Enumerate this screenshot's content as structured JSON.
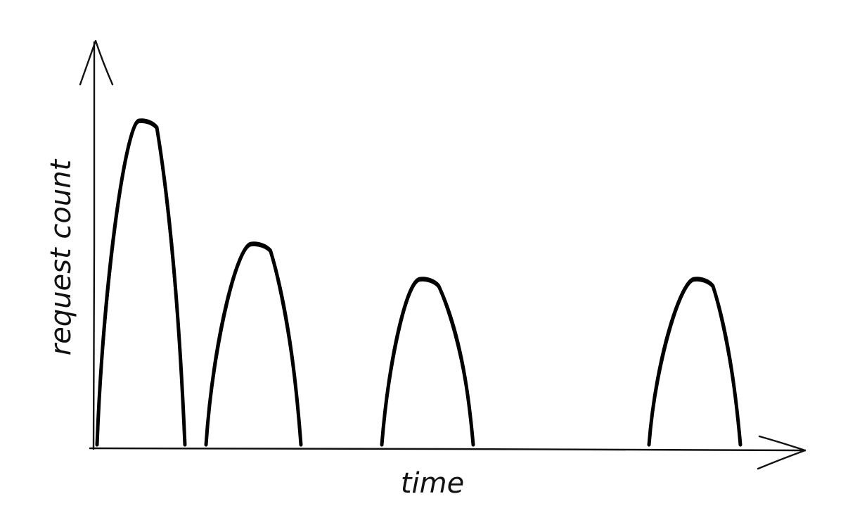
{
  "chart_data": {
    "type": "area",
    "xlabel": "time",
    "ylabel": "request count",
    "xlim": [
      0,
      100
    ],
    "ylim": [
      0,
      100
    ],
    "grid": false,
    "legend": "none",
    "colors": {
      "ink": "#000000",
      "background": "#ffffff"
    },
    "bursts": [
      {
        "start": 0.5,
        "peak_time": 7,
        "end": 13,
        "peak": 93
      },
      {
        "start": 16,
        "peak_time": 23,
        "end": 29.5,
        "peak": 58
      },
      {
        "start": 41,
        "peak_time": 47,
        "end": 54,
        "peak": 48
      },
      {
        "start": 79,
        "peak_time": 86,
        "end": 92,
        "peak": 48
      }
    ]
  }
}
